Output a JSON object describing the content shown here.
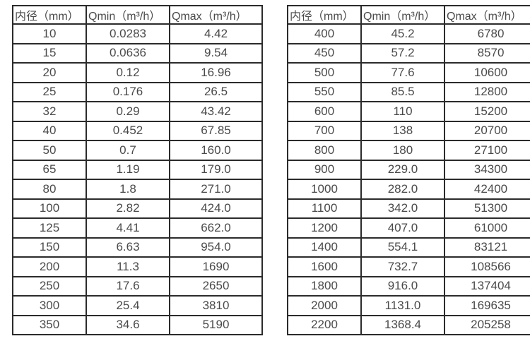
{
  "colors": {
    "background": "#ffffff",
    "border": "#2b2b2b",
    "text": "#4a4a4a"
  },
  "tables": [
    {
      "name": "flow-spec-small-diameters",
      "headers": [
        "内径（mm）",
        "Qmin（m³/h）",
        "Qmax（m³/h）"
      ],
      "rows": [
        [
          "10",
          "0.0283",
          "4.42"
        ],
        [
          "15",
          "0.0636",
          "9.54"
        ],
        [
          "20",
          "0.12",
          "16.96"
        ],
        [
          "25",
          "0.176",
          "26.5"
        ],
        [
          "32",
          "0.29",
          "43.42"
        ],
        [
          "40",
          "0.452",
          "67.85"
        ],
        [
          "50",
          "0.7",
          "160.0"
        ],
        [
          "65",
          "1.19",
          "179.0"
        ],
        [
          "80",
          "1.8",
          "271.0"
        ],
        [
          "100",
          "2.82",
          "424.0"
        ],
        [
          "125",
          "4.41",
          "662.0"
        ],
        [
          "150",
          "6.63",
          "954.0"
        ],
        [
          "200",
          "11.3",
          "1690"
        ],
        [
          "250",
          "17.6",
          "2650"
        ],
        [
          "300",
          "25.4",
          "3810"
        ],
        [
          "350",
          "34.6",
          "5190"
        ]
      ]
    },
    {
      "name": "flow-spec-large-diameters",
      "headers": [
        "内径（mm）",
        "Qmin（m³/h）",
        "Qmax（m³/h）"
      ],
      "rows": [
        [
          "400",
          "45.2",
          "6780"
        ],
        [
          "450",
          "57.2",
          "8570"
        ],
        [
          "500",
          "77.6",
          "10600"
        ],
        [
          "550",
          "85.5",
          "12800"
        ],
        [
          "600",
          "110",
          "15200"
        ],
        [
          "700",
          "138",
          "20700"
        ],
        [
          "800",
          "180",
          "27100"
        ],
        [
          "900",
          "229.0",
          "34300"
        ],
        [
          "1000",
          "282.0",
          "42400"
        ],
        [
          "1100",
          "342.0",
          "51300"
        ],
        [
          "1200",
          "407.0",
          "61000"
        ],
        [
          "1400",
          "554.1",
          "83121"
        ],
        [
          "1600",
          "732.7",
          "108566"
        ],
        [
          "1800",
          "916.0",
          "137404"
        ],
        [
          "2000",
          "1131.0",
          "169635"
        ],
        [
          "2200",
          "1368.4",
          "205258"
        ]
      ]
    }
  ]
}
